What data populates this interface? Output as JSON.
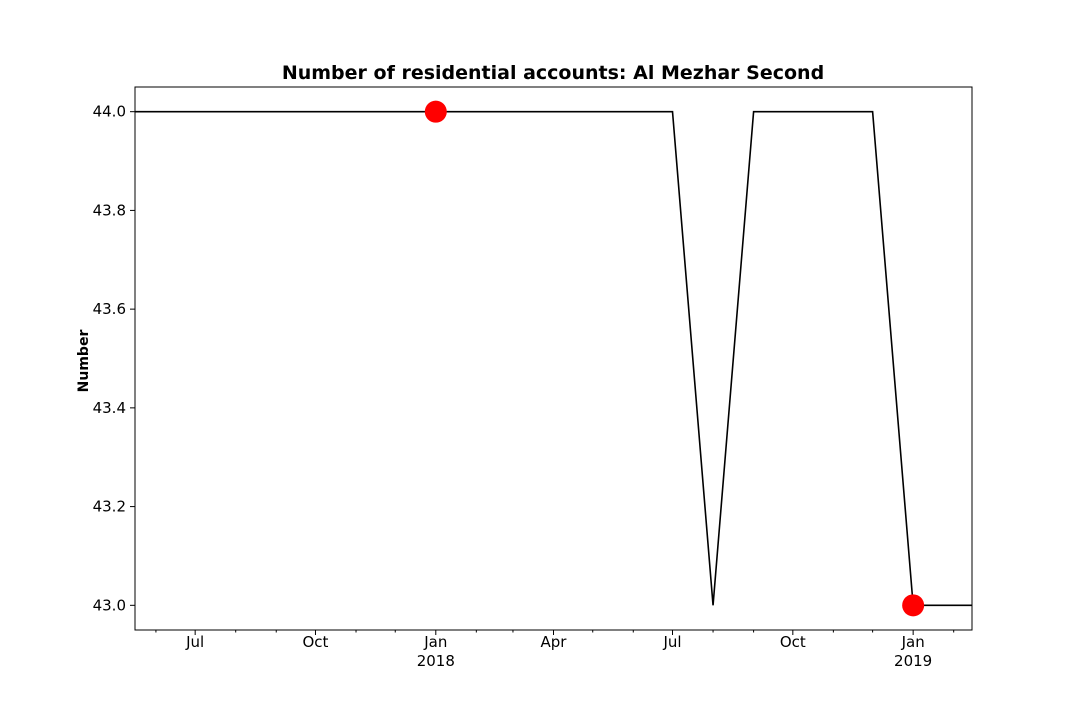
{
  "chart_data": {
    "type": "line",
    "title": "Number of residential accounts: Al Mezhar Second",
    "xlabel": "",
    "ylabel": "Number",
    "xlim": [
      "2017-05-16",
      "2019-02-15"
    ],
    "ylim": [
      42.95,
      44.05
    ],
    "grid": false,
    "series": [
      {
        "x": [
          "2017-05-01",
          "2017-06-01",
          "2017-07-01",
          "2017-08-01",
          "2017-09-01",
          "2017-10-01",
          "2017-11-01",
          "2017-12-01",
          "2018-01-01",
          "2018-02-01",
          "2018-03-01",
          "2018-04-01",
          "2018-05-01",
          "2018-06-01",
          "2018-07-01",
          "2018-08-01",
          "2018-09-01",
          "2018-10-01",
          "2018-11-01",
          "2018-12-01",
          "2019-01-01",
          "2019-02-01",
          "2019-03-01"
        ],
        "values": [
          44,
          44,
          44,
          44,
          44,
          44,
          44,
          44,
          44,
          44,
          44,
          44,
          44,
          44,
          44,
          43,
          44,
          44,
          44,
          44,
          43,
          43,
          43
        ],
        "color": "#000000"
      }
    ],
    "markers": [
      {
        "x": "2018-01-01",
        "y": 44.0,
        "color": "#ff0000"
      },
      {
        "x": "2019-01-01",
        "y": 43.0,
        "color": "#ff0000"
      }
    ],
    "y_ticks": [
      {
        "value": 43.0,
        "label": "43.0"
      },
      {
        "value": 43.2,
        "label": "43.2"
      },
      {
        "value": 43.4,
        "label": "43.4"
      },
      {
        "value": 43.6,
        "label": "43.6"
      },
      {
        "value": 43.8,
        "label": "43.8"
      },
      {
        "value": 44.0,
        "label": "44.0"
      }
    ],
    "x_major_ticks": [
      {
        "date": "2017-07-01",
        "label": "Jul",
        "sublabel": ""
      },
      {
        "date": "2017-10-01",
        "label": "Oct",
        "sublabel": ""
      },
      {
        "date": "2018-01-01",
        "label": "Jan",
        "sublabel": "2018"
      },
      {
        "date": "2018-04-01",
        "label": "Apr",
        "sublabel": ""
      },
      {
        "date": "2018-07-01",
        "label": "Jul",
        "sublabel": ""
      },
      {
        "date": "2018-10-01",
        "label": "Oct",
        "sublabel": ""
      },
      {
        "date": "2019-01-01",
        "label": "Jan",
        "sublabel": "2019"
      }
    ],
    "x_minor_ticks": [
      "2017-06-01",
      "2017-08-01",
      "2017-09-01",
      "2017-11-01",
      "2017-12-01",
      "2018-02-01",
      "2018-03-01",
      "2018-05-01",
      "2018-06-01",
      "2018-08-01",
      "2018-09-01",
      "2018-11-01",
      "2018-12-01",
      "2019-02-01"
    ]
  }
}
